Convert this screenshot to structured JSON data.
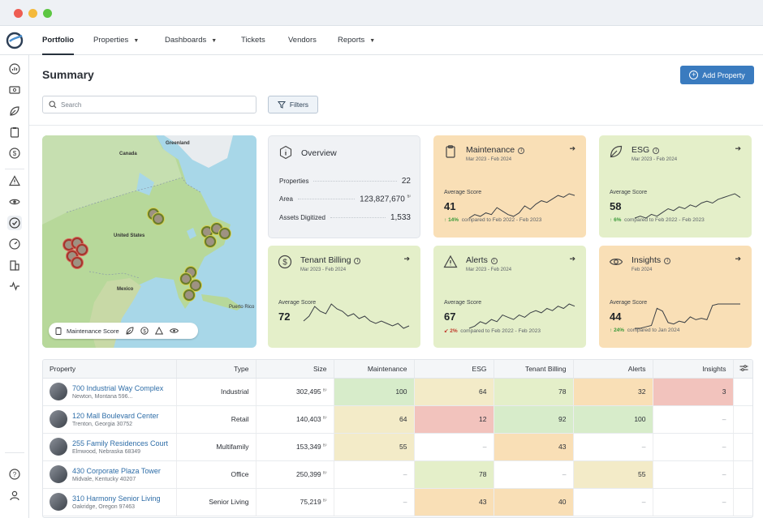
{
  "nav": {
    "items": [
      {
        "label": "Portfolio",
        "dropdown": false,
        "active": true
      },
      {
        "label": "Properties",
        "dropdown": true,
        "active": false
      },
      {
        "label": "Dashboards",
        "dropdown": true,
        "active": false
      },
      {
        "label": "Tickets",
        "dropdown": false,
        "active": false
      },
      {
        "label": "Vendors",
        "dropdown": false,
        "active": false
      },
      {
        "label": "Reports",
        "dropdown": true,
        "active": false
      }
    ]
  },
  "page": {
    "title": "Summary",
    "add_button": "Add Property",
    "search_placeholder": "Search",
    "filters_label": "Filters"
  },
  "map": {
    "labels": {
      "canada": "Canada",
      "greenland": "Greenland",
      "united_states": "United States",
      "mexico": "Mexico",
      "puerto_rico": "Puerto Rico"
    },
    "legend_label": "Maintenance Score"
  },
  "overview": {
    "title": "Overview",
    "rows": [
      {
        "label": "Properties",
        "value": "22",
        "unit": ""
      },
      {
        "label": "Area",
        "value": "123,827,670",
        "unit": "ft²"
      },
      {
        "label": "Assets Digitized",
        "value": "1,533",
        "unit": ""
      }
    ]
  },
  "cards": {
    "maintenance": {
      "title": "Maintenance",
      "period": "Mar 2023 - Feb 2024",
      "avg_label": "Average Score",
      "score": "41",
      "delta": "14%",
      "compare": "compared to Feb 2022 - Feb 2023",
      "trend": [
        18,
        20,
        19,
        21,
        20,
        24,
        22,
        20,
        19,
        21,
        25,
        23,
        26,
        28,
        27,
        29,
        31,
        30,
        32,
        31
      ]
    },
    "esg": {
      "title": "ESG",
      "period": "Mar 2023 - Feb 2024",
      "avg_label": "Average Score",
      "score": "58",
      "delta": "6%",
      "compare": "compared to Feb 2022 - Feb 2023",
      "trend": [
        20,
        21,
        20,
        22,
        21,
        23,
        25,
        24,
        26,
        25,
        27,
        26,
        28,
        29,
        28,
        30,
        31,
        32,
        33,
        31
      ]
    },
    "tenant_billing": {
      "title": "Tenant Billing",
      "period": "Mar 2023 - Feb 2024",
      "avg_label": "Average Score",
      "score": "72",
      "trend": [
        20,
        22,
        26,
        24,
        23,
        27,
        25,
        24,
        22,
        23,
        21,
        22,
        20,
        19,
        20,
        19,
        18,
        19,
        17,
        18
      ]
    },
    "alerts": {
      "title": "Alerts",
      "period": "Mar 2023 - Feb 2024",
      "avg_label": "Average Score",
      "score": "67",
      "delta": "2%",
      "compare": "compared to Feb 2022 - Feb 2023",
      "trend": [
        18,
        19,
        21,
        20,
        22,
        21,
        24,
        23,
        22,
        24,
        23,
        25,
        26,
        25,
        27,
        26,
        28,
        27,
        29,
        28
      ]
    },
    "insights": {
      "title": "Insights",
      "period": "Feb 2024",
      "avg_label": "Average Score",
      "score": "44",
      "delta": "24%",
      "compare": "compared to Jan 2024",
      "trend": [
        10,
        10,
        11,
        12,
        24,
        22,
        14,
        13,
        15,
        14,
        18,
        16,
        17,
        16,
        26,
        27,
        27,
        27,
        27,
        27
      ]
    }
  },
  "table": {
    "headers": {
      "property": "Property",
      "type": "Type",
      "size": "Size",
      "maintenance": "Maintenance",
      "esg": "ESG",
      "tenant_billing": "Tenant Billing",
      "alerts": "Alerts",
      "insights": "Insights"
    },
    "size_unit": "ft²",
    "rows": [
      {
        "name": "700 Industrial Way Complex",
        "address": "Newton, Montana 596...",
        "type": "Industrial",
        "size": "302,495",
        "scores": [
          "100",
          "64",
          "78",
          "32",
          "3"
        ]
      },
      {
        "name": "120 Mall Boulevard Center",
        "address": "Trenton, Georgia 30752",
        "type": "Retail",
        "size": "140,403",
        "scores": [
          "64",
          "12",
          "92",
          "100",
          "–"
        ]
      },
      {
        "name": "255 Family Residences Court",
        "address": "Elmwood, Nebraska 68349",
        "type": "Multifamily",
        "size": "153,349",
        "scores": [
          "55",
          "–",
          "43",
          "–",
          "–"
        ]
      },
      {
        "name": "430 Corporate Plaza Tower",
        "address": "Midvale, Kentucky 40207",
        "type": "Office",
        "size": "250,399",
        "scores": [
          "–",
          "78",
          "–",
          "55",
          "–"
        ]
      },
      {
        "name": "310 Harmony Senior Living",
        "address": "Oakridge, Oregon 97463",
        "type": "Senior Living",
        "size": "75,219",
        "scores": [
          "–",
          "43",
          "40",
          "–",
          "–"
        ]
      }
    ]
  },
  "colors": {
    "accent": "#3a7bbf",
    "orange_card": "#f9dfb6",
    "green_card": "#e4efc9",
    "up": "#3b9a3a",
    "down": "#c0392b"
  }
}
